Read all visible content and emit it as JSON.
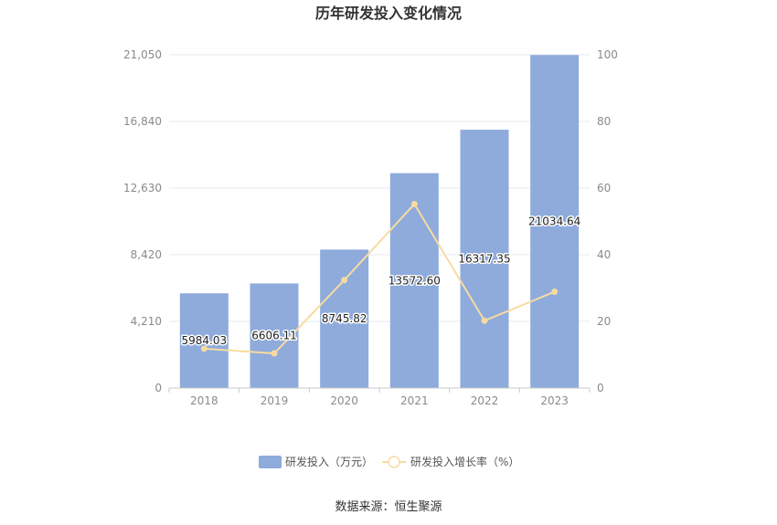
{
  "chart_data": {
    "type": "bar",
    "title": "历年研发投入变化情况",
    "categories": [
      "2018",
      "2019",
      "2020",
      "2021",
      "2022",
      "2023"
    ],
    "series": [
      {
        "name": "研发投入（万元）",
        "type": "bar",
        "axis": "left",
        "values": [
          5984.03,
          6606.11,
          8745.82,
          13572.6,
          16317.35,
          21034.64
        ],
        "labels": [
          "5984.03",
          "6606.11",
          "8745.82",
          "13572.60",
          "16317.35",
          "21034.64"
        ]
      },
      {
        "name": "研发投入增长率（%）",
        "type": "line",
        "axis": "right",
        "values": [
          11.8,
          10.4,
          32.4,
          55.2,
          20.2,
          28.9
        ]
      }
    ],
    "y_left": {
      "min": 0,
      "max": 21050,
      "ticks": [
        "0",
        "4,210",
        "8,420",
        "12,630",
        "16,840",
        "21,050"
      ]
    },
    "y_right": {
      "min": 0,
      "max": 100,
      "ticks": [
        "0",
        "20",
        "40",
        "60",
        "80",
        "100"
      ]
    },
    "grid": true,
    "legend_position": "bottom",
    "source": "数据来源：恒生聚源",
    "colors": {
      "bar": "#8eabdb",
      "line": "#f7dba0",
      "grid": "#e6e9f0",
      "axis": "#c8c8c8"
    }
  }
}
